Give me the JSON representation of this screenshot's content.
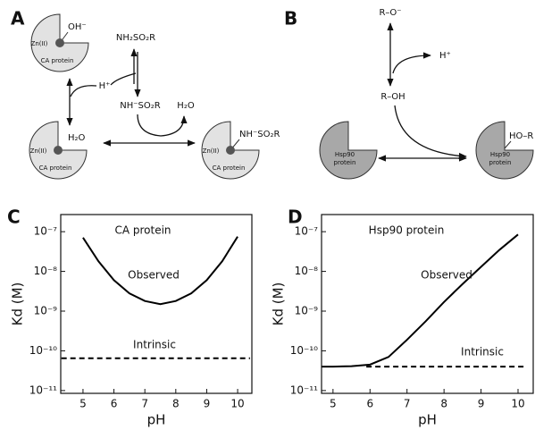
{
  "panel_labels": [
    "A",
    "B",
    "C",
    "D"
  ],
  "diagram_a": {
    "complex_hydroxide": {
      "ligand": "OH⁻",
      "metal": "Zn(II)",
      "protein": "CA protein"
    },
    "sulfonamide": "NH₂SO₂R",
    "proton": "H⁺",
    "deprotonated": "NH⁻SO₂R",
    "water": "H₂O",
    "complex_water": {
      "ligand": "H₂O",
      "metal": "Zn(II)",
      "protein": "CA protein"
    },
    "complex_bound": {
      "ligand": "NH⁻SO₂R",
      "metal": "Zn(II)",
      "protein": "CA protein"
    }
  },
  "diagram_b": {
    "anion": "R–O⁻",
    "proton": "H⁺",
    "ligand": "R–OH",
    "protein_free": [
      "Hsp90",
      "protein"
    ],
    "complex": {
      "ligand": "HO–R",
      "protein": [
        "Hsp90",
        "protein"
      ]
    }
  },
  "chart_data": [
    {
      "type": "line",
      "title": "CA protein",
      "xlabel": "pH",
      "ylabel": "Kd (M)",
      "log_y": true,
      "xlim": [
        4.28,
        10.46
      ],
      "xticks": [
        5,
        6,
        7,
        8,
        9,
        10
      ],
      "ylim": [
        8.5e-12,
        2.7e-07
      ],
      "yticks": [
        {
          "value": 1e-11,
          "label": "10⁻¹¹"
        },
        {
          "value": 1e-10,
          "label": "10⁻¹⁰"
        },
        {
          "value": 1e-09,
          "label": "10⁻⁹"
        },
        {
          "value": 1e-08,
          "label": "10⁻⁸"
        },
        {
          "value": 1e-07,
          "label": "10⁻⁷"
        }
      ],
      "series": [
        {
          "name": "Observed",
          "color": "#000000",
          "dashed": false,
          "x": [
            5,
            5.5,
            6,
            6.5,
            7,
            7.5,
            8,
            8.5,
            9,
            9.5,
            10
          ],
          "values": [
            7.1e-08,
            1.8e-08,
            6e-09,
            2.8e-09,
            1.8e-09,
            1.5e-09,
            1.8e-09,
            2.8e-09,
            6e-09,
            1.8e-08,
            7.5e-08
          ]
        },
        {
          "name": "Intrinsic",
          "color": "#000000",
          "dashed": true,
          "x": [
            4.3,
            10.4
          ],
          "values": [
            6.5e-11,
            6.5e-11
          ]
        }
      ]
    },
    {
      "type": "line",
      "title": "Hsp90 protein",
      "xlabel": "pH",
      "ylabel": "Kd (M)",
      "log_y": true,
      "xlim": [
        4.69,
        10.41
      ],
      "xticks": [
        5,
        6,
        7,
        8,
        9,
        10
      ],
      "ylim": [
        8.5e-12,
        2.7e-07
      ],
      "yticks": [
        {
          "value": 1e-11,
          "label": "10⁻¹¹"
        },
        {
          "value": 1e-10,
          "label": "10⁻¹⁰"
        },
        {
          "value": 1e-09,
          "label": "10⁻⁹"
        },
        {
          "value": 1e-08,
          "label": "10⁻⁸"
        },
        {
          "value": 1e-07,
          "label": "10⁻⁷"
        }
      ],
      "series": [
        {
          "name": "Observed",
          "color": "#000000",
          "dashed": false,
          "x": [
            4.7,
            5,
            5.5,
            6,
            6.5,
            7,
            7.5,
            8,
            8.5,
            9,
            9.5,
            10
          ],
          "values": [
            4e-11,
            4e-11,
            4.1e-11,
            4.5e-11,
            7e-11,
            1.9e-10,
            5.5e-10,
            1.7e-09,
            4.8e-09,
            1.3e-08,
            3.5e-08,
            8.5e-08
          ]
        },
        {
          "name": "Intrinsic",
          "color": "#000000",
          "dashed": true,
          "x": [
            5.9,
            10.2
          ],
          "values": [
            4e-11,
            4e-11
          ]
        }
      ]
    }
  ]
}
